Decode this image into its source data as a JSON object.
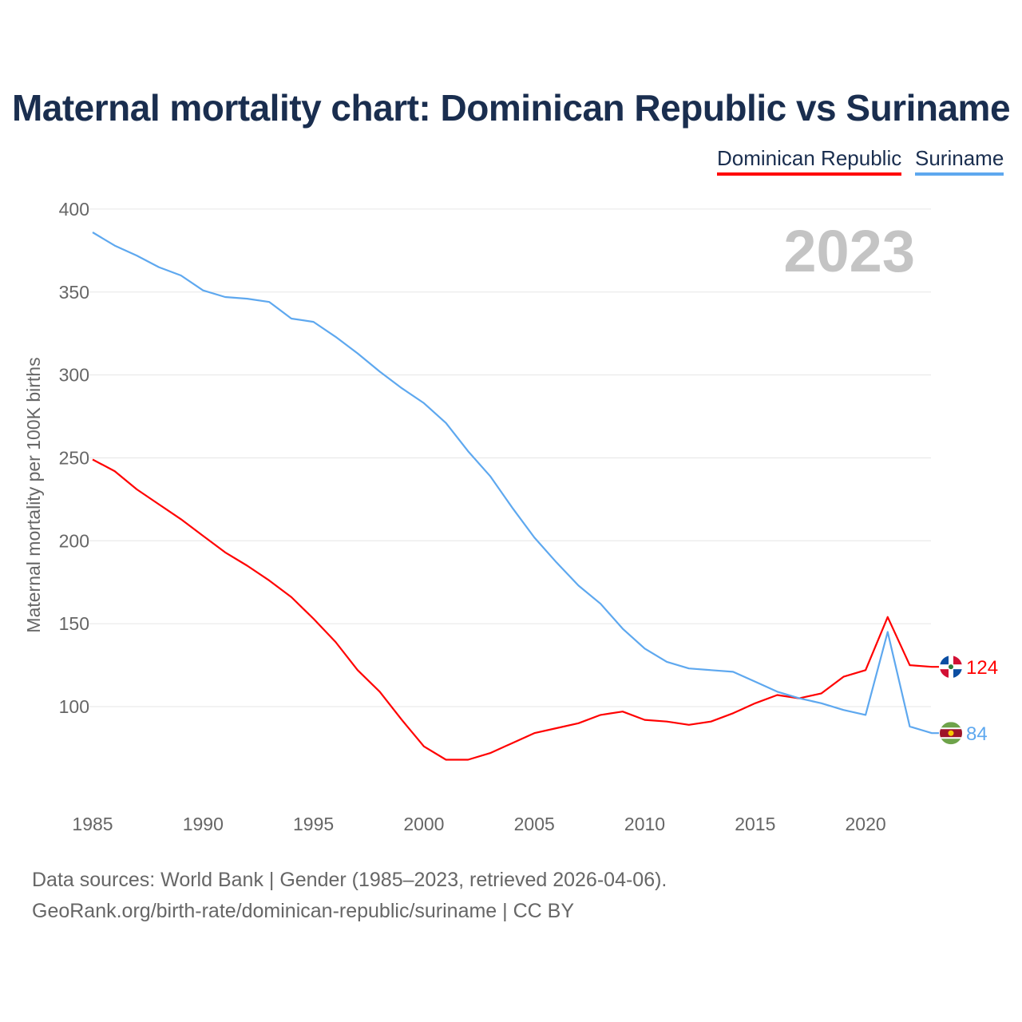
{
  "chart_data": {
    "type": "line",
    "title": "Maternal mortality chart: Dominican Republic vs Suriname",
    "ylabel": "Maternal mortality per 100K births",
    "xlabel": "",
    "year_label": "2023",
    "xlim": [
      1985,
      2023
    ],
    "ylim": [
      50,
      400
    ],
    "x_ticks": [
      1985,
      1990,
      1995,
      2000,
      2005,
      2010,
      2015,
      2020
    ],
    "y_ticks": [
      100,
      150,
      200,
      250,
      300,
      350,
      400
    ],
    "grid": true,
    "legend_position": "top-right",
    "x": [
      1985,
      1986,
      1987,
      1988,
      1989,
      1990,
      1991,
      1992,
      1993,
      1994,
      1995,
      1996,
      1997,
      1998,
      1999,
      2000,
      2001,
      2002,
      2003,
      2004,
      2005,
      2006,
      2007,
      2008,
      2009,
      2010,
      2011,
      2012,
      2013,
      2014,
      2015,
      2016,
      2017,
      2018,
      2019,
      2020,
      2021,
      2022,
      2023
    ],
    "series": [
      {
        "name": "Dominican Republic",
        "color": "#ff0000",
        "end_label": "124",
        "values": [
          249,
          242,
          231,
          222,
          213,
          203,
          193,
          185,
          176,
          166,
          153,
          139,
          122,
          109,
          92,
          76,
          68,
          68,
          72,
          78,
          84,
          87,
          90,
          95,
          97,
          92,
          91,
          89,
          91,
          96,
          102,
          107,
          105,
          108,
          118,
          122,
          154,
          125,
          124
        ]
      },
      {
        "name": "Suriname",
        "color": "#5ea8ef",
        "end_label": "84",
        "values": [
          386,
          378,
          372,
          365,
          360,
          351,
          347,
          346,
          344,
          334,
          332,
          323,
          313,
          302,
          292,
          283,
          271,
          254,
          239,
          220,
          202,
          187,
          173,
          162,
          147,
          135,
          127,
          123,
          122,
          121,
          115,
          109,
          105,
          102,
          98,
          95,
          145,
          88,
          84
        ]
      }
    ]
  },
  "footer": {
    "line1": "Data sources: World Bank | Gender (1985–2023, retrieved 2026-04-06).",
    "line2": "GeoRank.org/birth-rate/dominican-republic/suriname | CC BY"
  }
}
